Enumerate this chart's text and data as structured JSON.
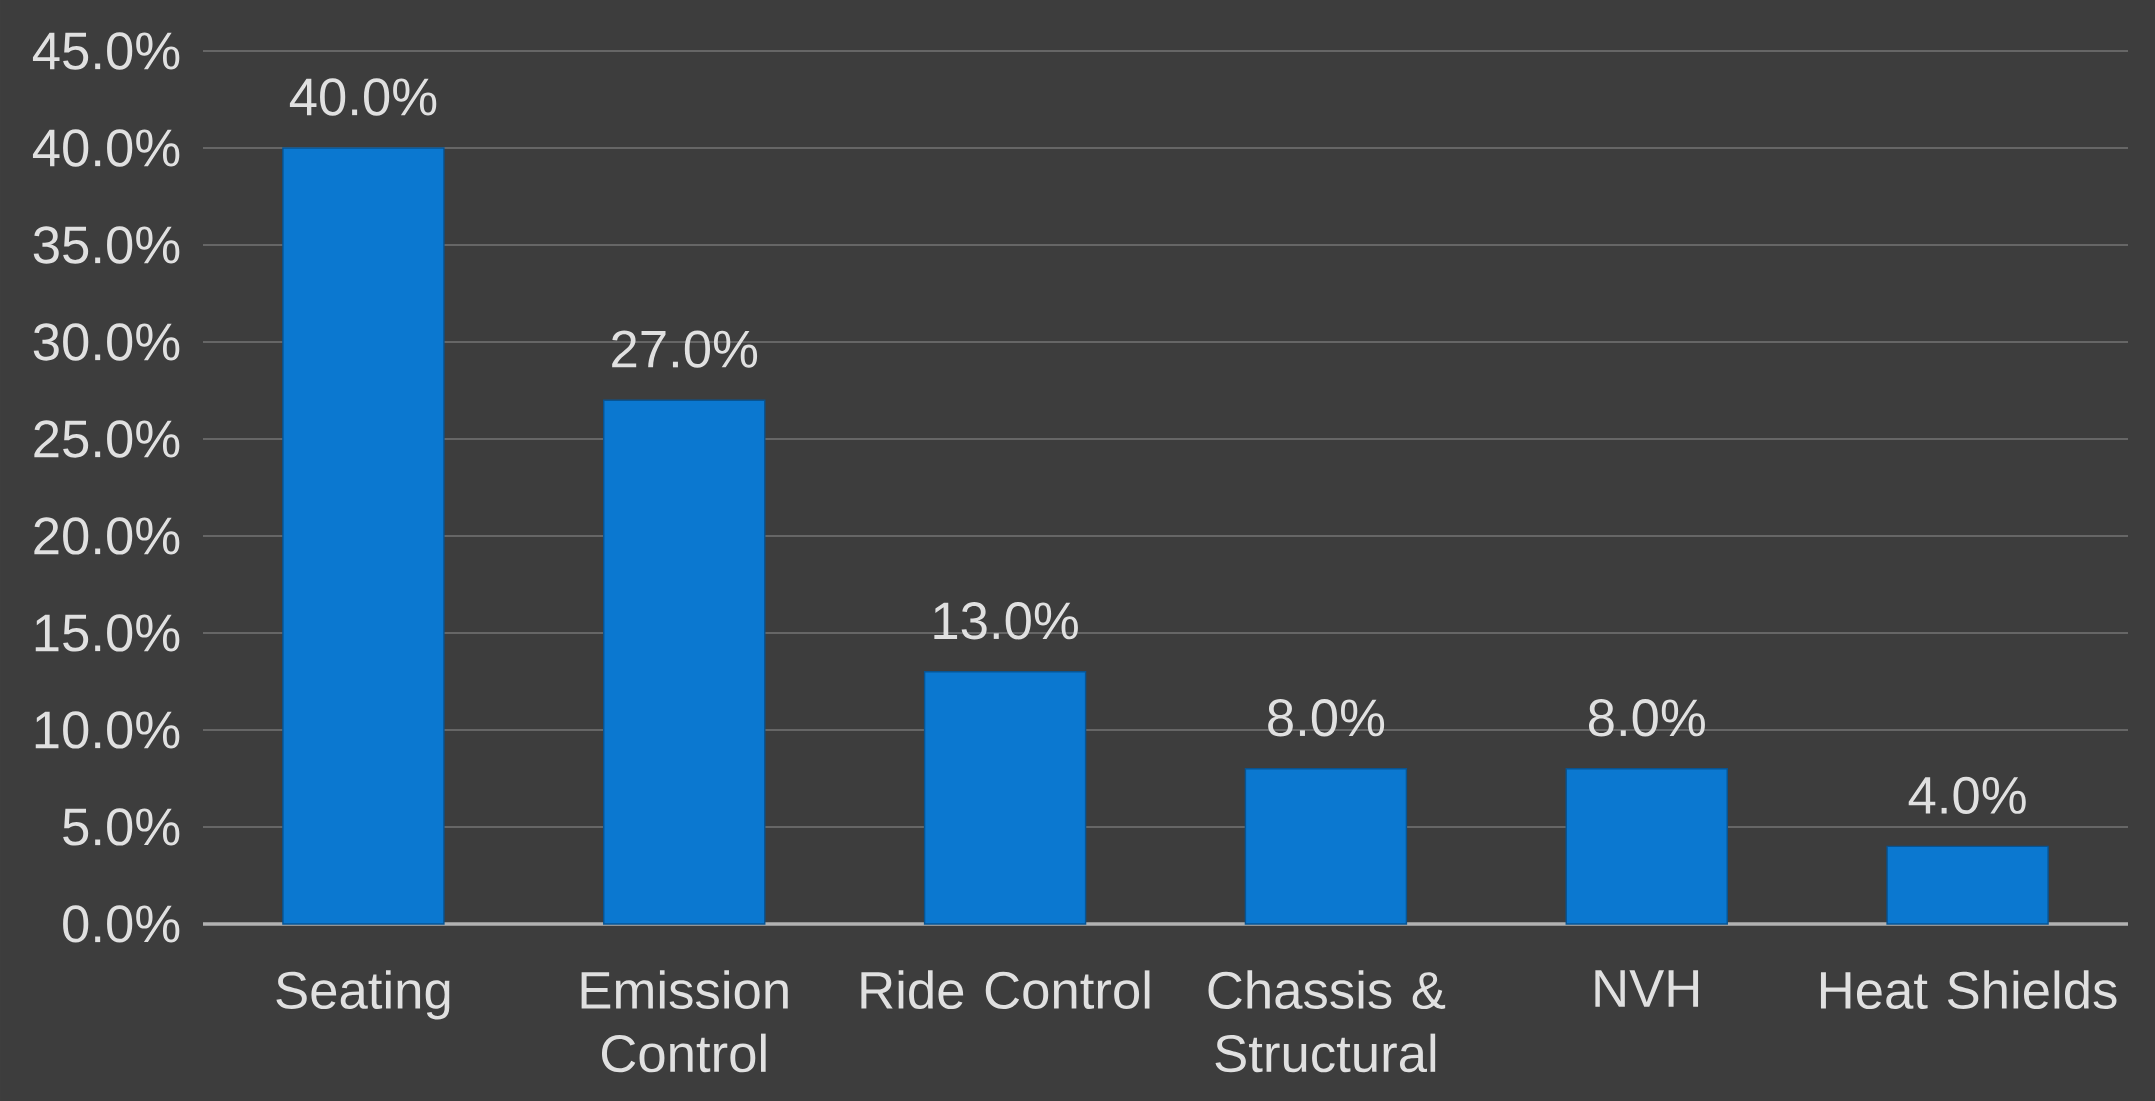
{
  "chart_data": {
    "type": "bar",
    "categories": [
      "Seating",
      "Emission Control",
      "Ride Control",
      "Chassis & Structural",
      "NVH",
      "Heat Shields"
    ],
    "values": [
      40,
      27,
      13,
      8,
      8,
      4
    ],
    "value_labels": [
      "40.0%",
      "27.0%",
      "13.0%",
      "8.0%",
      "8.0%",
      "4.0%"
    ],
    "color": "#0b78d0",
    "ylim": [
      0,
      45
    ],
    "yticks": [
      {
        "value": 0,
        "label": "0.0%"
      },
      {
        "value": 5,
        "label": "5.0%"
      },
      {
        "value": 10,
        "label": "10.0%"
      },
      {
        "value": 15,
        "label": "15.0%"
      },
      {
        "value": 20,
        "label": "20.0%"
      },
      {
        "value": 25,
        "label": "25.0%"
      },
      {
        "value": 30,
        "label": "30.0%"
      },
      {
        "value": 35,
        "label": "35.0%"
      },
      {
        "value": 40,
        "label": "40.0%"
      },
      {
        "value": 45,
        "label": "45.0%"
      }
    ],
    "grid": "y"
  }
}
